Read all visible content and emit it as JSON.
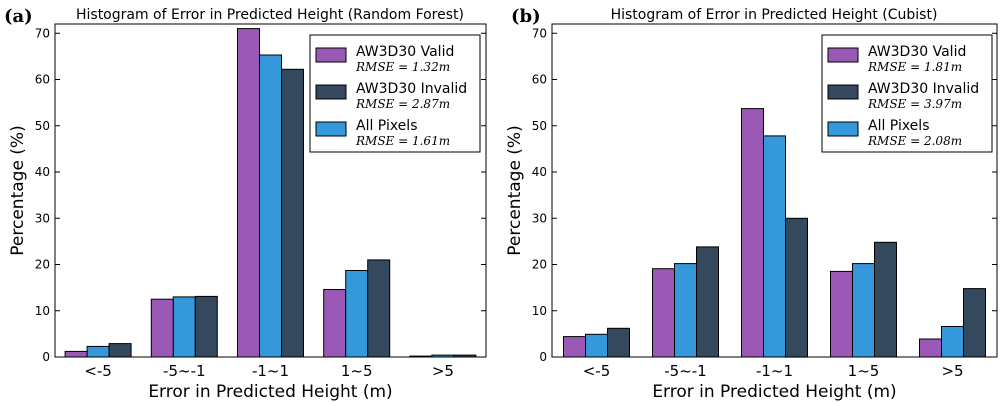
{
  "colors": {
    "valid": "#9b59b6",
    "invalid": "#34495e",
    "all": "#3498db"
  },
  "chart_data": [
    {
      "type": "bar",
      "panel_label": "(a)",
      "title": "Histogram of Error in Predicted Height (Random Forest)",
      "xlabel": "Error in Predicted Height (m)",
      "ylabel": "Percentage (%)",
      "ylim": [
        0,
        72
      ],
      "yticks": [
        0,
        10,
        20,
        30,
        40,
        50,
        60,
        70
      ],
      "categories": [
        "<-5",
        "-5~-1",
        "-1~1",
        "1~5",
        ">5"
      ],
      "legend_position": "top-right",
      "series": [
        {
          "name": "AW3D30 Valid",
          "rmse": "RMSE = 1.32m",
          "color_key": "valid",
          "values": [
            1.2,
            12.5,
            71.0,
            14.6,
            0.2
          ]
        },
        {
          "name": "All Pixels",
          "rmse": "RMSE = 1.61m",
          "color_key": "all",
          "values": [
            2.3,
            13.0,
            65.3,
            18.7,
            0.4
          ]
        },
        {
          "name": "AW3D30 Invalid",
          "rmse": "RMSE = 2.87m",
          "color_key": "invalid",
          "values": [
            2.9,
            13.1,
            62.2,
            21.0,
            0.4
          ]
        }
      ],
      "legend_order": [
        0,
        2,
        1
      ]
    },
    {
      "type": "bar",
      "panel_label": "(b)",
      "title": "Histogram of Error in Predicted Height (Cubist)",
      "xlabel": "Error in Predicted Height (m)",
      "ylabel": "Percentage (%)",
      "ylim": [
        0,
        72
      ],
      "yticks": [
        0,
        10,
        20,
        30,
        40,
        50,
        60,
        70
      ],
      "categories": [
        "<-5",
        "-5~-1",
        "-1~1",
        "1~5",
        ">5"
      ],
      "legend_position": "top-right",
      "series": [
        {
          "name": "AW3D30 Valid",
          "rmse": "RMSE = 1.81m",
          "color_key": "valid",
          "values": [
            4.4,
            19.1,
            53.7,
            18.5,
            3.9
          ]
        },
        {
          "name": "All Pixels",
          "rmse": "RMSE = 2.08m",
          "color_key": "all",
          "values": [
            4.9,
            20.2,
            47.8,
            20.2,
            6.6
          ]
        },
        {
          "name": "AW3D30 Invalid",
          "rmse": "RMSE = 3.97m",
          "color_key": "invalid",
          "values": [
            6.2,
            23.8,
            30.0,
            24.8,
            14.8
          ]
        }
      ],
      "legend_order": [
        0,
        2,
        1
      ]
    }
  ]
}
